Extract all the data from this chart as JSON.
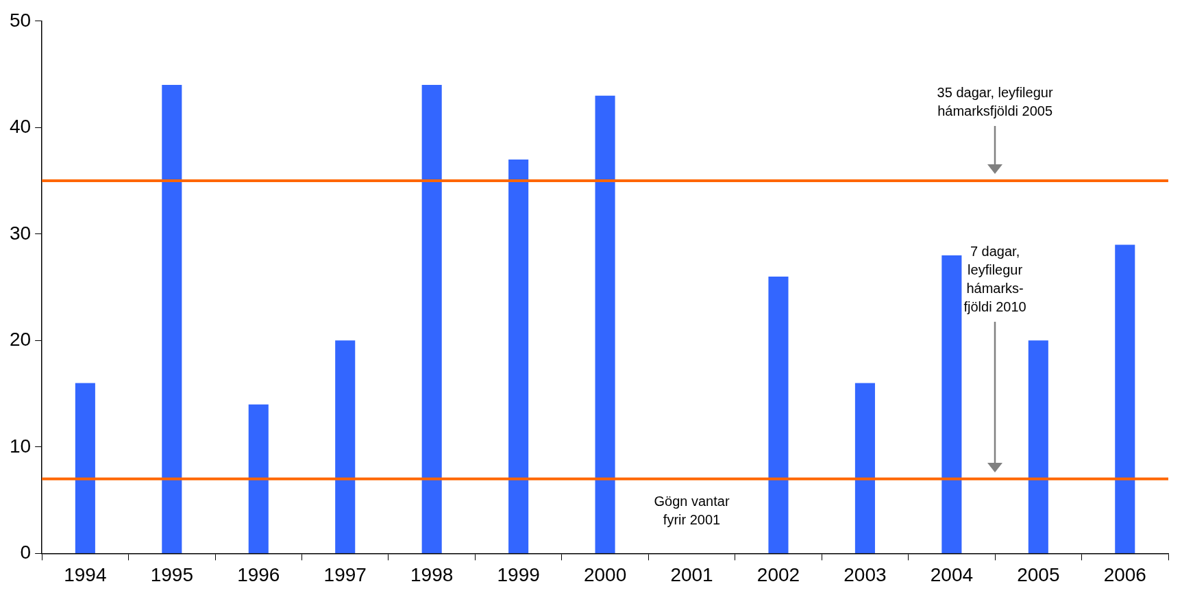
{
  "chart_data": {
    "type": "bar",
    "categories": [
      "1994",
      "1995",
      "1996",
      "1997",
      "1998",
      "1999",
      "2000",
      "2001",
      "2002",
      "2003",
      "2004",
      "2005",
      "2006"
    ],
    "values": [
      16,
      44,
      14,
      20,
      44,
      37,
      43,
      null,
      26,
      16,
      28,
      20,
      29
    ],
    "color": "#3366ff",
    "ylim": [
      0,
      50
    ],
    "yticks": [
      0,
      10,
      20,
      30,
      40,
      50
    ],
    "grid": false,
    "legend": false,
    "ref_lines": [
      {
        "axis": "y",
        "value": 35,
        "color": "#ff6600"
      },
      {
        "axis": "y",
        "value": 7,
        "color": "#ff6600"
      }
    ],
    "annotations": [
      "35 dagar, leyfilegur\nhámarksfjöldi 2005",
      "7 dagar,\nleyfilegur\nhámarks-\nfjöldi 2010",
      "Gögn vantar\nfyrir 2001"
    ]
  }
}
